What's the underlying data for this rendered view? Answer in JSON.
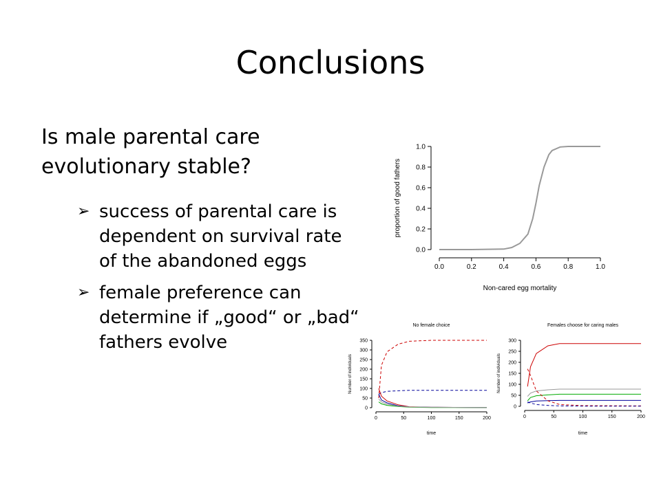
{
  "slide": {
    "title": "Conclusions",
    "question": "Is male parental care evolutionary stable?",
    "bullets": [
      "success of parental care is dependent on survival rate of the abandoned eggs",
      "female preference can determine if „good“ or „bad“ fathers evolve"
    ],
    "bullet_marker": "➢"
  },
  "chart_data": [
    {
      "type": "line",
      "title": "",
      "xlabel": "Non-cared egg mortality",
      "ylabel": "proportion of good fathers",
      "xlim": [
        0,
        1
      ],
      "ylim": [
        0,
        1
      ],
      "xticks": [
        "0.0",
        "0.2",
        "0.4",
        "0.6",
        "0.8",
        "1.0"
      ],
      "yticks": [
        "0.0",
        "0.2",
        "0.4",
        "0.6",
        "0.8",
        "1.0"
      ],
      "series": [
        {
          "color": "#999999",
          "x": [
            0.0,
            0.2,
            0.4,
            0.45,
            0.5,
            0.55,
            0.58,
            0.6,
            0.62,
            0.65,
            0.68,
            0.7,
            0.75,
            0.8,
            0.9,
            1.0
          ],
          "y": [
            0.0,
            0.0,
            0.005,
            0.02,
            0.06,
            0.15,
            0.3,
            0.45,
            0.62,
            0.8,
            0.92,
            0.96,
            0.995,
            1.0,
            1.0,
            1.0
          ]
        }
      ]
    },
    {
      "type": "line",
      "title": "No female choice",
      "xlabel": "time",
      "ylabel": "Number of individuals",
      "xlim": [
        0,
        200
      ],
      "ylim": [
        0,
        350
      ],
      "xticks": [
        "0",
        "50",
        "100",
        "150",
        "200"
      ],
      "yticks": [
        "0",
        "50",
        "100",
        "150",
        "200",
        "250",
        "300",
        "350"
      ],
      "series": [
        {
          "color": "#cc0000",
          "dash": true,
          "x": [
            5,
            10,
            20,
            40,
            60,
            100,
            200
          ],
          "y": [
            50,
            220,
            290,
            330,
            345,
            350,
            350
          ]
        },
        {
          "color": "#000099",
          "dash": true,
          "x": [
            5,
            10,
            20,
            40,
            60,
            100,
            200
          ],
          "y": [
            70,
            78,
            85,
            88,
            90,
            90,
            90
          ]
        },
        {
          "color": "#cc0000",
          "dash": false,
          "x": [
            5,
            10,
            20,
            40,
            60,
            100,
            200
          ],
          "y": [
            100,
            60,
            35,
            15,
            5,
            2,
            1
          ]
        },
        {
          "color": "#000099",
          "dash": false,
          "x": [
            5,
            10,
            20,
            40,
            60,
            100,
            200
          ],
          "y": [
            70,
            40,
            25,
            10,
            4,
            2,
            1
          ]
        },
        {
          "color": "#00aa00",
          "dash": false,
          "x": [
            5,
            10,
            20,
            40,
            60,
            100,
            200
          ],
          "y": [
            30,
            20,
            12,
            6,
            3,
            1,
            1
          ]
        },
        {
          "color": "#999999",
          "dash": false,
          "x": [
            5,
            10,
            20,
            40,
            60,
            100,
            200
          ],
          "y": [
            45,
            30,
            18,
            8,
            4,
            2,
            1
          ]
        }
      ]
    },
    {
      "type": "line",
      "title": "Females choose for caring males",
      "xlabel": "time",
      "ylabel": "Number of individuals",
      "xlim": [
        0,
        200
      ],
      "ylim": [
        0,
        300
      ],
      "xticks": [
        "0",
        "50",
        "100",
        "150",
        "200"
      ],
      "yticks": [
        "0",
        "50",
        "100",
        "150",
        "200",
        "250",
        "300"
      ],
      "series": [
        {
          "color": "#cc0000",
          "dash": false,
          "x": [
            5,
            10,
            20,
            40,
            60,
            100,
            200
          ],
          "y": [
            90,
            180,
            240,
            275,
            285,
            285,
            285
          ]
        },
        {
          "color": "#999999",
          "dash": false,
          "x": [
            5,
            10,
            20,
            40,
            60,
            100,
            200
          ],
          "y": [
            45,
            60,
            70,
            75,
            78,
            78,
            78
          ]
        },
        {
          "color": "#00aa00",
          "dash": false,
          "x": [
            5,
            10,
            20,
            40,
            60,
            100,
            200
          ],
          "y": [
            25,
            40,
            48,
            52,
            55,
            55,
            55
          ]
        },
        {
          "color": "#000099",
          "dash": false,
          "x": [
            5,
            10,
            20,
            40,
            60,
            100,
            200
          ],
          "y": [
            15,
            20,
            24,
            26,
            27,
            27,
            27
          ]
        },
        {
          "color": "#cc0000",
          "dash": true,
          "x": [
            5,
            10,
            20,
            40,
            60,
            100,
            200
          ],
          "y": [
            170,
            140,
            70,
            25,
            8,
            3,
            2
          ]
        },
        {
          "color": "#000099",
          "dash": true,
          "x": [
            5,
            10,
            20,
            40,
            60,
            100,
            200
          ],
          "y": [
            20,
            15,
            8,
            4,
            2,
            1,
            1
          ]
        }
      ]
    }
  ]
}
